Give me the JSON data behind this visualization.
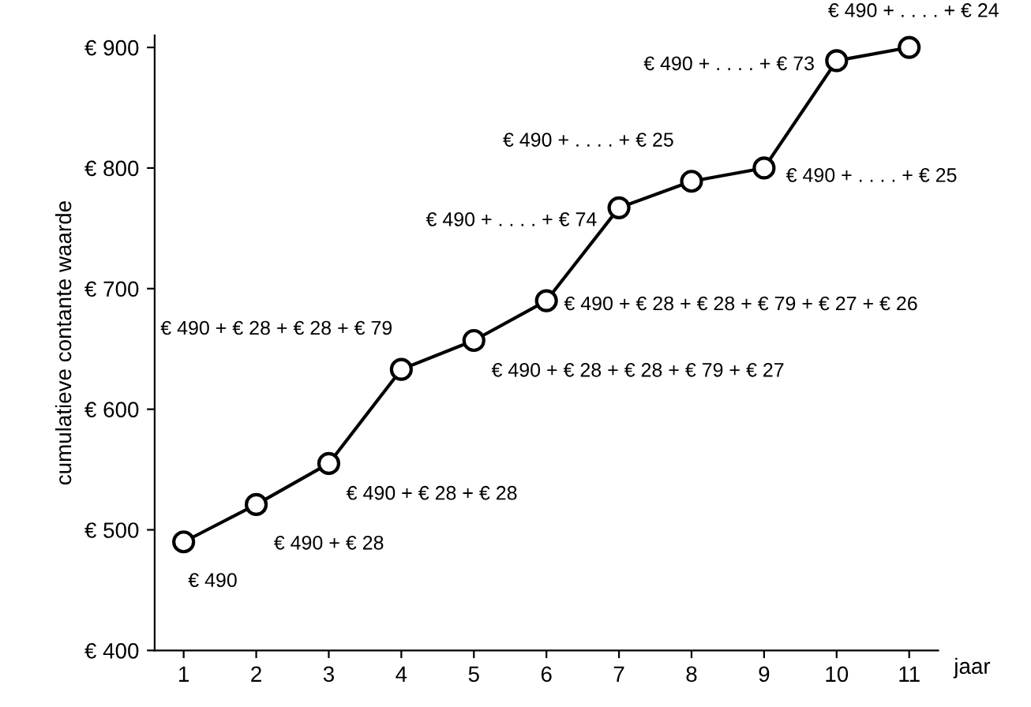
{
  "chart_data": {
    "type": "line",
    "xlabel": "jaar",
    "ylabel": "cumulatieve contante waarde",
    "x": [
      1,
      2,
      3,
      4,
      5,
      6,
      7,
      8,
      9,
      10,
      11
    ],
    "series": [
      {
        "color": "#000000",
        "values": [
          490,
          521,
          555,
          633,
          657,
          690,
          767,
          789,
          800,
          889,
          900
        ]
      }
    ],
    "marker": "circle",
    "line_style": "solid",
    "grid": false,
    "legend": false,
    "xlim": [
      0.6,
      11.4
    ],
    "xticks": [
      1,
      2,
      3,
      4,
      5,
      6,
      7,
      8,
      9,
      10,
      11
    ],
    "ylim": [
      400,
      910
    ],
    "yticks": [
      {
        "value": 400,
        "label": "€ 400"
      },
      {
        "value": 500,
        "label": "€ 500"
      },
      {
        "value": 600,
        "label": "€ 600"
      },
      {
        "value": 700,
        "label": "€ 700"
      },
      {
        "value": 800,
        "label": "€ 800"
      },
      {
        "value": 900,
        "label": "€ 900"
      }
    ],
    "annotations": [
      {
        "text": "€ 490",
        "x": 1,
        "y": 490
      },
      {
        "text": "€ 490 + € 28",
        "x": 2,
        "y": 521
      },
      {
        "text": "€ 490 + € 28 + € 28",
        "x": 3,
        "y": 555
      },
      {
        "text": "€ 490 + € 28 + € 28 + € 79",
        "x": 4,
        "y": 633
      },
      {
        "text": "€ 490 + € 28 + € 28 + € 79 + € 27",
        "x": 5,
        "y": 657
      },
      {
        "text": "€ 490 + € 28 + € 28 + € 79 + € 27 + € 26",
        "x": 6,
        "y": 690
      },
      {
        "text": "€ 490 + . . . . + € 74",
        "x": 7,
        "y": 767
      },
      {
        "text": "€ 490 + . . . . + € 25",
        "x": 8,
        "y": 789
      },
      {
        "text": "€ 490 + . . . . + € 25",
        "x": 9,
        "y": 800
      },
      {
        "text": "€ 490 + . . . . + € 73",
        "x": 10,
        "y": 889
      },
      {
        "text": "€ 490 + . . . . + € 24",
        "x": 11,
        "y": 900
      }
    ]
  }
}
